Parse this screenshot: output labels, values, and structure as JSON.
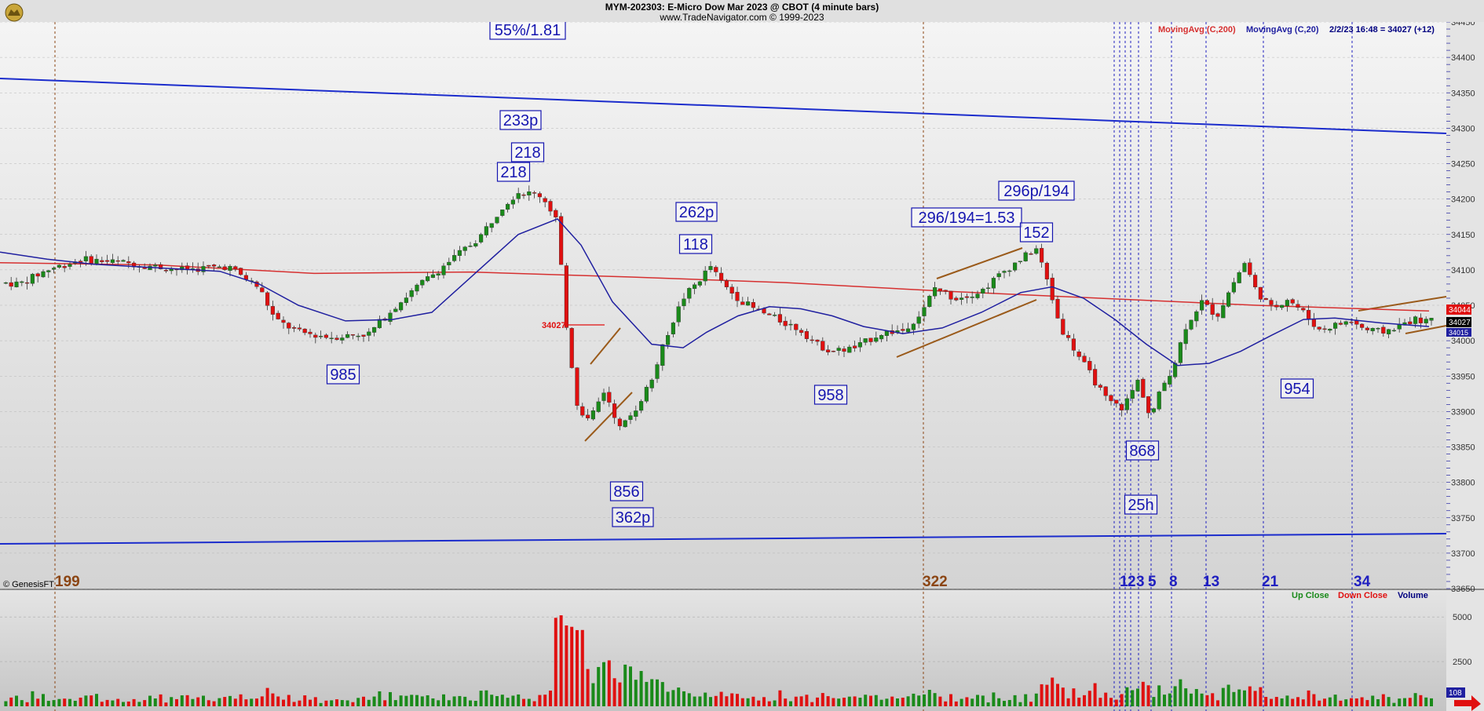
{
  "header": {
    "title": "MYM-202303:  E-Micro Dow Mar 2023 @ CBOT  (4 minute bars)",
    "subtitle": "www.TradeNavigator.com © 1999-2023"
  },
  "watermark": "© GenesisFT",
  "legend": {
    "ma200": "MovingAvg (C,200)",
    "ma20": "MovingAvg (C,20)",
    "last": "2/2/23 16:48 = 34027 (+12)",
    "volume_up": "Up Close",
    "volume_down": "Down Close",
    "volume_label": "Volume"
  },
  "price_tag_current": "34027",
  "price_tag_high": "34044",
  "price_tag_low": "34015",
  "level_marker": "34027",
  "volume_tag": "108",
  "colors": {
    "up": "#1a8a1a",
    "down": "#e01010",
    "ma200": "#d63030",
    "ma20": "#2020a0",
    "trend": "#1b2ccc",
    "fib_brown": "#8b4513",
    "fib_blue": "#2020c0",
    "annotation": "#1515b0",
    "channel": "#9a5a1a"
  },
  "annotations": {
    "a1": "55%/1.81",
    "a2": "233p",
    "a3": "218",
    "a4": "218",
    "a5": "985",
    "a6": "262p",
    "a7": "118",
    "a8": "856",
    "a9": "362p",
    "a10": "958",
    "a11": "296/194=1.53",
    "a12": "296p/194",
    "a13": "152",
    "a14": "868",
    "a15": "25h",
    "a16": "954"
  },
  "fib_labels": {
    "f199": "199",
    "f322": "322",
    "f1": "1",
    "f2": "2",
    "f3": "3",
    "f5": "5",
    "f8": "8",
    "f13": "13",
    "f21": "21",
    "f34": "34"
  },
  "chart_data": {
    "type": "candlestick",
    "title": "MYM-202303:  E-Micro Dow Mar 2023 @ CBOT  (4 minute bars)",
    "ylim": [
      33650,
      34450
    ],
    "yticks": [
      34450,
      34400,
      34350,
      34300,
      34250,
      34200,
      34150,
      34100,
      34050,
      34000,
      33950,
      33900,
      33850,
      33800,
      33750,
      33700,
      33650
    ],
    "volume_ylim": [
      0,
      6500
    ],
    "volume_yticks": [
      5000,
      2500
    ],
    "last_close": 34027,
    "pivots": [
      {
        "label": "high",
        "value": 34218
      },
      {
        "label": "low",
        "value": 33985
      },
      {
        "label": "low",
        "value": 33856
      },
      {
        "label": "high",
        "value": 34118
      },
      {
        "label": "low",
        "value": 33958
      },
      {
        "label": "high",
        "value": 34152
      },
      {
        "label": "low",
        "value": 33868
      },
      {
        "label": "low",
        "value": 33954
      }
    ],
    "moving_averages": [
      "MovingAvg (C,200)",
      "MovingAvg (C,20)"
    ],
    "price_path": [
      [
        0,
        34082
      ],
      [
        25,
        34080
      ],
      [
        60,
        34100
      ],
      [
        105,
        34115
      ],
      [
        160,
        34110
      ],
      [
        230,
        34100
      ],
      [
        290,
        34105
      ],
      [
        330,
        34075
      ],
      [
        350,
        34030
      ],
      [
        380,
        34012
      ],
      [
        420,
        34005
      ],
      [
        470,
        34010
      ],
      [
        500,
        34045
      ],
      [
        530,
        34075
      ],
      [
        570,
        34110
      ],
      [
        610,
        34145
      ],
      [
        640,
        34190
      ],
      [
        660,
        34210
      ],
      [
        690,
        34205
      ],
      [
        710,
        34170
      ],
      [
        720,
        34030
      ],
      [
        735,
        33910
      ],
      [
        750,
        33885
      ],
      [
        770,
        33930
      ],
      [
        790,
        33875
      ],
      [
        810,
        33905
      ],
      [
        830,
        33945
      ],
      [
        850,
        34010
      ],
      [
        870,
        34060
      ],
      [
        890,
        34085
      ],
      [
        905,
        34105
      ],
      [
        920,
        34080
      ],
      [
        940,
        34060
      ],
      [
        960,
        34045
      ],
      [
        990,
        34030
      ],
      [
        1020,
        34015
      ],
      [
        1040,
        33995
      ],
      [
        1060,
        33985
      ],
      [
        1090,
        33990
      ],
      [
        1120,
        34010
      ],
      [
        1150,
        34015
      ],
      [
        1175,
        34040
      ],
      [
        1190,
        34075
      ],
      [
        1215,
        34060
      ],
      [
        1250,
        34070
      ],
      [
        1275,
        34095
      ],
      [
        1300,
        34115
      ],
      [
        1320,
        34130
      ],
      [
        1335,
        34080
      ],
      [
        1350,
        34020
      ],
      [
        1370,
        33985
      ],
      [
        1390,
        33950
      ],
      [
        1410,
        33915
      ],
      [
        1430,
        33905
      ],
      [
        1450,
        33945
      ],
      [
        1465,
        33890
      ],
      [
        1480,
        33935
      ],
      [
        1495,
        33965
      ],
      [
        1510,
        34020
      ],
      [
        1530,
        34055
      ],
      [
        1550,
        34035
      ],
      [
        1570,
        34080
      ],
      [
        1585,
        34110
      ],
      [
        1600,
        34070
      ],
      [
        1620,
        34045
      ],
      [
        1640,
        34060
      ],
      [
        1660,
        34040
      ],
      [
        1680,
        34015
      ],
      [
        1700,
        34022
      ],
      [
        1720,
        34028
      ],
      [
        1740,
        34015
      ],
      [
        1760,
        34012
      ],
      [
        1780,
        34020
      ],
      [
        1800,
        34030
      ],
      [
        1820,
        34027
      ]
    ],
    "ma20_path": [
      [
        0,
        34125
      ],
      [
        60,
        34115
      ],
      [
        120,
        34108
      ],
      [
        200,
        34103
      ],
      [
        280,
        34098
      ],
      [
        330,
        34080
      ],
      [
        380,
        34050
      ],
      [
        440,
        34028
      ],
      [
        500,
        34030
      ],
      [
        550,
        34040
      ],
      [
        600,
        34090
      ],
      [
        660,
        34150
      ],
      [
        710,
        34172
      ],
      [
        740,
        34135
      ],
      [
        780,
        34055
      ],
      [
        830,
        33995
      ],
      [
        870,
        33990
      ],
      [
        900,
        34012
      ],
      [
        940,
        34035
      ],
      [
        980,
        34048
      ],
      [
        1020,
        34045
      ],
      [
        1060,
        34035
      ],
      [
        1100,
        34020
      ],
      [
        1150,
        34010
      ],
      [
        1200,
        34018
      ],
      [
        1250,
        34040
      ],
      [
        1300,
        34068
      ],
      [
        1340,
        34076
      ],
      [
        1380,
        34060
      ],
      [
        1420,
        34030
      ],
      [
        1460,
        33995
      ],
      [
        1500,
        33965
      ],
      [
        1540,
        33968
      ],
      [
        1580,
        33985
      ],
      [
        1620,
        34008
      ],
      [
        1660,
        34030
      ],
      [
        1700,
        34032
      ],
      [
        1760,
        34025
      ],
      [
        1820,
        34020
      ]
    ],
    "ma200_path": [
      [
        0,
        34110
      ],
      [
        200,
        34107
      ],
      [
        400,
        34095
      ],
      [
        600,
        34097
      ],
      [
        800,
        34090
      ],
      [
        1000,
        34082
      ],
      [
        1200,
        34070
      ],
      [
        1400,
        34060
      ],
      [
        1600,
        34050
      ],
      [
        1820,
        34042
      ]
    ]
  }
}
